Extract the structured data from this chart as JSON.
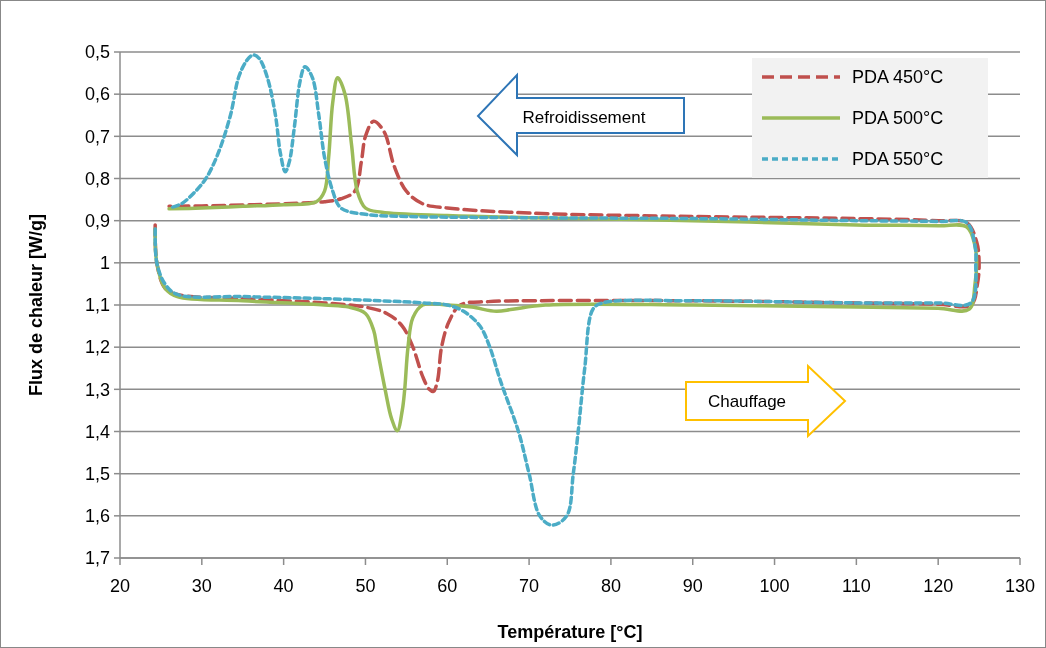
{
  "chart_data": {
    "type": "line",
    "xlabel": "Température [°C]",
    "ylabel": "Flux de chaleur [W/g]",
    "xlim": [
      20,
      130
    ],
    "xticks": [
      20,
      30,
      40,
      50,
      60,
      70,
      80,
      90,
      100,
      110,
      120,
      130
    ],
    "ylim": [
      1.7,
      0.5
    ],
    "yticks": [
      {
        "value": 0.5,
        "label": "0,5"
      },
      {
        "value": 0.6,
        "label": "0,6"
      },
      {
        "value": 0.7,
        "label": "0,7"
      },
      {
        "value": 0.8,
        "label": "0,8"
      },
      {
        "value": 0.9,
        "label": "0,9"
      },
      1,
      {
        "value": 1.1,
        "label": "1,1"
      },
      {
        "value": 1.2,
        "label": "1,2"
      },
      {
        "value": 1.3,
        "label": "1,3"
      },
      {
        "value": 1.4,
        "label": "1,4"
      },
      {
        "value": 1.5,
        "label": "1,5"
      },
      {
        "value": 1.6,
        "label": "1,6"
      },
      {
        "value": 1.7,
        "label": "1,7"
      }
    ],
    "grid": "y",
    "legend": "top right",
    "annotations": [
      "Refroidissement",
      "Chauffage"
    ],
    "series": [
      {
        "name": "PDA 450°C",
        "color": "#c0504d",
        "line_style": "dashed",
        "x": [
          24.3,
          24.5,
          25.5,
          27,
          35,
          45,
          50,
          52.6,
          54.5,
          55.8,
          57,
          57.8,
          58.3,
          58.8,
          59.3,
          60.2,
          61.6,
          65,
          70,
          90,
          110,
          120,
          124,
          124.8,
          125,
          124.7,
          123.5,
          120,
          110,
          90,
          70,
          60,
          57,
          55,
          53.5,
          52.3,
          51,
          50,
          49.5,
          48.7,
          47,
          45,
          40,
          30,
          26
        ],
        "values": [
          0.91,
          1.0,
          1.06,
          1.075,
          1.085,
          1.095,
          1.105,
          1.12,
          1.15,
          1.2,
          1.27,
          1.3,
          1.305,
          1.28,
          1.2,
          1.14,
          1.1,
          1.092,
          1.09,
          1.09,
          1.095,
          1.098,
          1.1,
          1.05,
          1.0,
          0.95,
          0.905,
          0.9,
          0.895,
          0.89,
          0.882,
          0.87,
          0.86,
          0.83,
          0.77,
          0.69,
          0.664,
          0.7,
          0.76,
          0.83,
          0.848,
          0.855,
          0.86,
          0.865,
          0.866
        ]
      },
      {
        "name": "PDA 500°C",
        "color": "#9bbb59",
        "line_style": "solid",
        "x": [
          24.3,
          24.5,
          25.5,
          27,
          35,
          45,
          48,
          50,
          51,
          51.4,
          52.4,
          53.2,
          53.9,
          54.5,
          54.8,
          55.2,
          55.8,
          57,
          60,
          63,
          66,
          68,
          72,
          90,
          110,
          120,
          123.8,
          124.5,
          124.7,
          124.5,
          123.5,
          120,
          110,
          90,
          70,
          60,
          52,
          50,
          49,
          48.3,
          47.5,
          46.6,
          46,
          45.5,
          45,
          44,
          40,
          35,
          30,
          26
        ],
        "values": [
          0.92,
          1.0,
          1.06,
          1.08,
          1.09,
          1.1,
          1.105,
          1.12,
          1.16,
          1.2,
          1.3,
          1.37,
          1.398,
          1.35,
          1.3,
          1.2,
          1.13,
          1.1,
          1.1,
          1.105,
          1.115,
          1.11,
          1.1,
          1.1,
          1.105,
          1.108,
          1.11,
          1.05,
          1.0,
          0.96,
          0.915,
          0.912,
          0.91,
          0.9,
          0.893,
          0.888,
          0.88,
          0.87,
          0.83,
          0.72,
          0.6,
          0.561,
          0.62,
          0.75,
          0.83,
          0.855,
          0.862,
          0.866,
          0.87,
          0.872
        ]
      },
      {
        "name": "PDA 550°C",
        "color": "#4bacc6",
        "line_style": "dotted",
        "x": [
          24.3,
          24.5,
          25.5,
          27,
          35,
          45,
          52,
          57,
          60,
          62,
          64,
          65.2,
          66.5,
          68.7,
          70,
          71.3,
          72.8,
          74.6,
          75.4,
          76,
          76.8,
          77.8,
          79,
          90,
          110,
          120,
          124,
          124.6,
          124.5,
          123.5,
          120,
          110,
          90,
          70,
          55,
          50,
          47,
          46,
          45,
          44.3,
          43.5,
          42.6,
          42,
          41.3,
          40.7,
          40.2,
          39.6,
          39,
          38,
          37,
          36.3,
          35.5,
          34.5,
          33.5,
          32,
          30.5,
          29,
          27.5,
          26
        ],
        "values": [
          0.92,
          1.0,
          1.05,
          1.075,
          1.08,
          1.085,
          1.09,
          1.095,
          1.1,
          1.115,
          1.15,
          1.2,
          1.28,
          1.4,
          1.5,
          1.6,
          1.622,
          1.6,
          1.5,
          1.4,
          1.25,
          1.11,
          1.095,
          1.09,
          1.095,
          1.095,
          1.095,
          1.0,
          0.96,
          0.905,
          0.902,
          0.9,
          0.895,
          0.893,
          0.89,
          0.885,
          0.87,
          0.83,
          0.75,
          0.65,
          0.56,
          0.535,
          0.57,
          0.68,
          0.76,
          0.784,
          0.74,
          0.65,
          0.56,
          0.515,
          0.507,
          0.52,
          0.56,
          0.65,
          0.74,
          0.8,
          0.835,
          0.86,
          0.87
        ]
      }
    ]
  }
}
